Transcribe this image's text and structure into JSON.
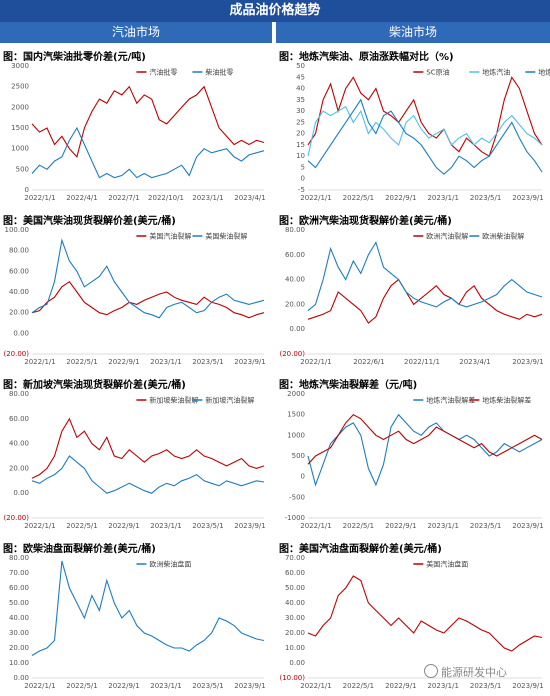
{
  "header": {
    "title": "成品油价格趋势",
    "left_section": "汽油市场",
    "right_section": "柴油市场"
  },
  "watermark": "能源研发中心",
  "colors": {
    "red": "#c00000",
    "blue": "#1b7ec2",
    "lightblue": "#4fc1e9",
    "header": "#1f4e9b"
  },
  "chart_data": [
    {
      "id": "c1",
      "type": "line",
      "title": "图：国内汽柴油批零价差(元/吨)",
      "ylim": [
        0,
        3000
      ],
      "yticks": [
        "0",
        "500",
        "1000",
        "1500",
        "2000",
        "2500",
        "3000"
      ],
      "xticks": [
        "2022/1/1",
        "2022/4/1",
        "2022/7/1",
        "2022/10/1",
        "2023/1/1",
        "2023/4/1"
      ],
      "series": [
        {
          "name": "汽油批零",
          "color": "#c00000",
          "values": [
            1600,
            1400,
            1500,
            1100,
            1300,
            1000,
            800,
            1500,
            1900,
            2200,
            2100,
            2400,
            2300,
            2500,
            2100,
            2300,
            2200,
            1700,
            1600,
            1800,
            2000,
            2200,
            2300,
            2500,
            2000,
            1500,
            1300,
            1100,
            1200,
            1100,
            1200,
            1150
          ]
        },
        {
          "name": "柴油批零",
          "color": "#1b7ec2",
          "values": [
            400,
            600,
            500,
            700,
            800,
            1200,
            1500,
            1100,
            700,
            300,
            400,
            300,
            350,
            500,
            300,
            400,
            300,
            350,
            400,
            500,
            600,
            350,
            800,
            1000,
            900,
            950,
            1000,
            800,
            700,
            850,
            900,
            950
          ]
        }
      ]
    },
    {
      "id": "c2",
      "type": "line",
      "title": "图：地炼汽柴油、原油涨跌幅对比（%)",
      "ylim": [
        -5,
        50
      ],
      "yticks": [
        "-5",
        "0",
        "5",
        "10",
        "15",
        "20",
        "25",
        "30",
        "35",
        "40",
        "45",
        "50"
      ],
      "xticks": [
        "2022/1/1",
        "2022/5/1",
        "2022/9/1",
        "2023/1/1",
        "2023/5/1",
        "2023/9/1"
      ],
      "series": [
        {
          "name": "SC原油",
          "color": "#c00000",
          "values": [
            15,
            20,
            35,
            42,
            30,
            40,
            45,
            38,
            35,
            40,
            30,
            28,
            25,
            30,
            35,
            25,
            20,
            18,
            22,
            15,
            12,
            18,
            15,
            12,
            10,
            20,
            35,
            45,
            40,
            30,
            20,
            15
          ]
        },
        {
          "name": "地炼汽油",
          "color": "#4fc1e9",
          "values": [
            10,
            25,
            30,
            28,
            30,
            32,
            25,
            30,
            20,
            25,
            22,
            18,
            15,
            25,
            28,
            22,
            18,
            20,
            22,
            15,
            18,
            20,
            15,
            18,
            16,
            20,
            25,
            28,
            24,
            20,
            18,
            15
          ]
        },
        {
          "name": "地炼柴油",
          "color": "#1b7ec2",
          "values": [
            8,
            5,
            10,
            15,
            20,
            25,
            30,
            35,
            25,
            20,
            28,
            30,
            25,
            20,
            18,
            15,
            10,
            5,
            2,
            5,
            10,
            8,
            5,
            8,
            10,
            15,
            20,
            25,
            18,
            12,
            8,
            3
          ]
        }
      ]
    },
    {
      "id": "c3",
      "type": "line",
      "title": "图：美国汽柴油现货裂解价差(美元/桶)",
      "ylim": [
        -20,
        100
      ],
      "yticks": [
        "(20.00)",
        "0.00",
        "20.00",
        "40.00",
        "60.00",
        "80.00",
        "100.00"
      ],
      "xticks": [
        "2022/1/1",
        "2022/5/1",
        "2022/9/1",
        "2023/1/1",
        "2023/5/1",
        "2023/9/1"
      ],
      "series": [
        {
          "name": "美国汽油裂解",
          "color": "#c00000",
          "values": [
            20,
            22,
            30,
            35,
            45,
            50,
            40,
            30,
            25,
            20,
            18,
            22,
            25,
            30,
            28,
            32,
            35,
            38,
            40,
            35,
            32,
            30,
            28,
            35,
            30,
            28,
            25,
            20,
            18,
            15,
            18,
            20
          ]
        },
        {
          "name": "美国柴油裂解",
          "color": "#1b7ec2",
          "values": [
            20,
            25,
            28,
            50,
            90,
            70,
            60,
            45,
            50,
            55,
            65,
            50,
            40,
            30,
            25,
            20,
            18,
            15,
            25,
            28,
            30,
            25,
            20,
            22,
            30,
            35,
            38,
            32,
            30,
            28,
            30,
            32
          ]
        }
      ]
    },
    {
      "id": "c4",
      "type": "line",
      "title": "图：欧洲汽柴油现货裂解价差(美元/桶)",
      "ylim": [
        -20,
        80
      ],
      "yticks": [
        "(20.00)",
        "0.00",
        "20.00",
        "40.00",
        "60.00",
        "80.00"
      ],
      "xticks": [
        "2022/1/1",
        "2022/6/1",
        "2022/11/1",
        "2023/4/1",
        "2023/9/1"
      ],
      "series": [
        {
          "name": "欧洲汽油裂解",
          "color": "#c00000",
          "values": [
            8,
            10,
            12,
            15,
            30,
            25,
            20,
            15,
            5,
            10,
            25,
            35,
            40,
            30,
            20,
            25,
            30,
            35,
            28,
            25,
            20,
            30,
            35,
            25,
            20,
            15,
            12,
            10,
            8,
            12,
            10,
            12
          ]
        },
        {
          "name": "欧洲柴油裂解",
          "color": "#1b7ec2",
          "values": [
            15,
            20,
            40,
            65,
            50,
            40,
            55,
            45,
            60,
            70,
            50,
            45,
            40,
            30,
            25,
            22,
            20,
            18,
            22,
            25,
            20,
            18,
            20,
            22,
            25,
            28,
            35,
            40,
            35,
            30,
            28,
            26
          ]
        }
      ]
    },
    {
      "id": "c5",
      "type": "line",
      "title": "图：新加坡汽柴油现货裂解价差(美元/桶)",
      "ylim": [
        -20,
        80
      ],
      "yticks": [
        "(20.00)",
        "0.00",
        "20.00",
        "40.00",
        "60.00",
        "80.00"
      ],
      "xticks": [
        "2022/1/1",
        "2022/5/1",
        "2022/9/1",
        "2023/1/1",
        "2023/5/1",
        "2023/9/1"
      ],
      "series": [
        {
          "name": "新加坡柴油裂解",
          "color": "#c00000",
          "values": [
            12,
            15,
            20,
            30,
            50,
            60,
            45,
            50,
            40,
            35,
            45,
            30,
            28,
            35,
            30,
            25,
            30,
            32,
            35,
            30,
            28,
            30,
            35,
            30,
            28,
            25,
            22,
            25,
            28,
            22,
            20,
            22
          ]
        },
        {
          "name": "新加坡汽油裂解",
          "color": "#1b7ec2",
          "values": [
            10,
            8,
            12,
            15,
            20,
            30,
            25,
            20,
            10,
            5,
            0,
            2,
            5,
            8,
            5,
            2,
            0,
            5,
            8,
            6,
            10,
            12,
            15,
            10,
            8,
            6,
            10,
            8,
            6,
            8,
            10,
            9
          ]
        }
      ]
    },
    {
      "id": "c6",
      "type": "line",
      "title": "图：地炼汽柴油裂解差（元/吨)",
      "ylim": [
        -1000,
        2000
      ],
      "yticks": [
        "-1000",
        "-500",
        "0",
        "500",
        "1000",
        "1500",
        "2000"
      ],
      "xticks": [
        "2022/1/1",
        "2022/5/1",
        "2022/9/1",
        "2023/1/1",
        "2023/5/1",
        "2023/9/1"
      ],
      "series": [
        {
          "name": "地炼汽油裂解差",
          "color": "#1b7ec2",
          "values": [
            500,
            -200,
            300,
            800,
            1000,
            1200,
            1300,
            1000,
            200,
            -200,
            300,
            1200,
            1500,
            1300,
            1100,
            1000,
            1200,
            1300,
            1100,
            1000,
            900,
            1000,
            900,
            700,
            500,
            600,
            800,
            700,
            600,
            700,
            800,
            900
          ]
        },
        {
          "name": "地炼柴油裂解差",
          "color": "#c00000",
          "values": [
            300,
            500,
            600,
            700,
            1000,
            1300,
            1500,
            1400,
            1200,
            1000,
            900,
            1000,
            1100,
            900,
            800,
            900,
            1000,
            1200,
            1100,
            1000,
            900,
            800,
            700,
            800,
            600,
            500,
            600,
            700,
            800,
            900,
            1000,
            900
          ]
        }
      ]
    },
    {
      "id": "c7",
      "type": "line",
      "title": "图：欧柴油盘面裂解价差(美元/桶)",
      "ylim": [
        0,
        80
      ],
      "yticks": [
        "0.00",
        "10.00",
        "20.00",
        "30.00",
        "40.00",
        "50.00",
        "60.00",
        "70.00",
        "80.00"
      ],
      "xticks": [
        "2022/1/1",
        "2022/5/1",
        "2022/9/1",
        "2023/1/1",
        "2023/5/1",
        "2023/9/1"
      ],
      "series": [
        {
          "name": "欧洲柴油盘面",
          "color": "#1b7ec2",
          "values": [
            15,
            18,
            20,
            25,
            78,
            60,
            50,
            40,
            55,
            45,
            65,
            50,
            40,
            45,
            35,
            30,
            28,
            25,
            22,
            20,
            20,
            18,
            22,
            25,
            30,
            40,
            38,
            35,
            30,
            28,
            26,
            25
          ]
        }
      ]
    },
    {
      "id": "c8",
      "type": "line",
      "title": "图：美国汽油盘面裂解价差(美元/桶)",
      "ylim": [
        -10,
        70
      ],
      "yticks": [
        "(10.00)",
        "0.00",
        "10.00",
        "20.00",
        "30.00",
        "40.00",
        "50.00",
        "60.00",
        "70.00"
      ],
      "xticks": [
        "2022/1/1",
        "2022/5/1",
        "2022/9/1",
        "2023/1/1",
        "2023/5/1",
        "2023/9/1"
      ],
      "series": [
        {
          "name": "美国汽油盘面",
          "color": "#c00000",
          "values": [
            20,
            18,
            25,
            30,
            45,
            50,
            58,
            55,
            40,
            35,
            30,
            25,
            30,
            25,
            20,
            28,
            25,
            22,
            20,
            25,
            30,
            28,
            25,
            22,
            20,
            15,
            10,
            8,
            12,
            15,
            18,
            17
          ]
        }
      ]
    }
  ]
}
